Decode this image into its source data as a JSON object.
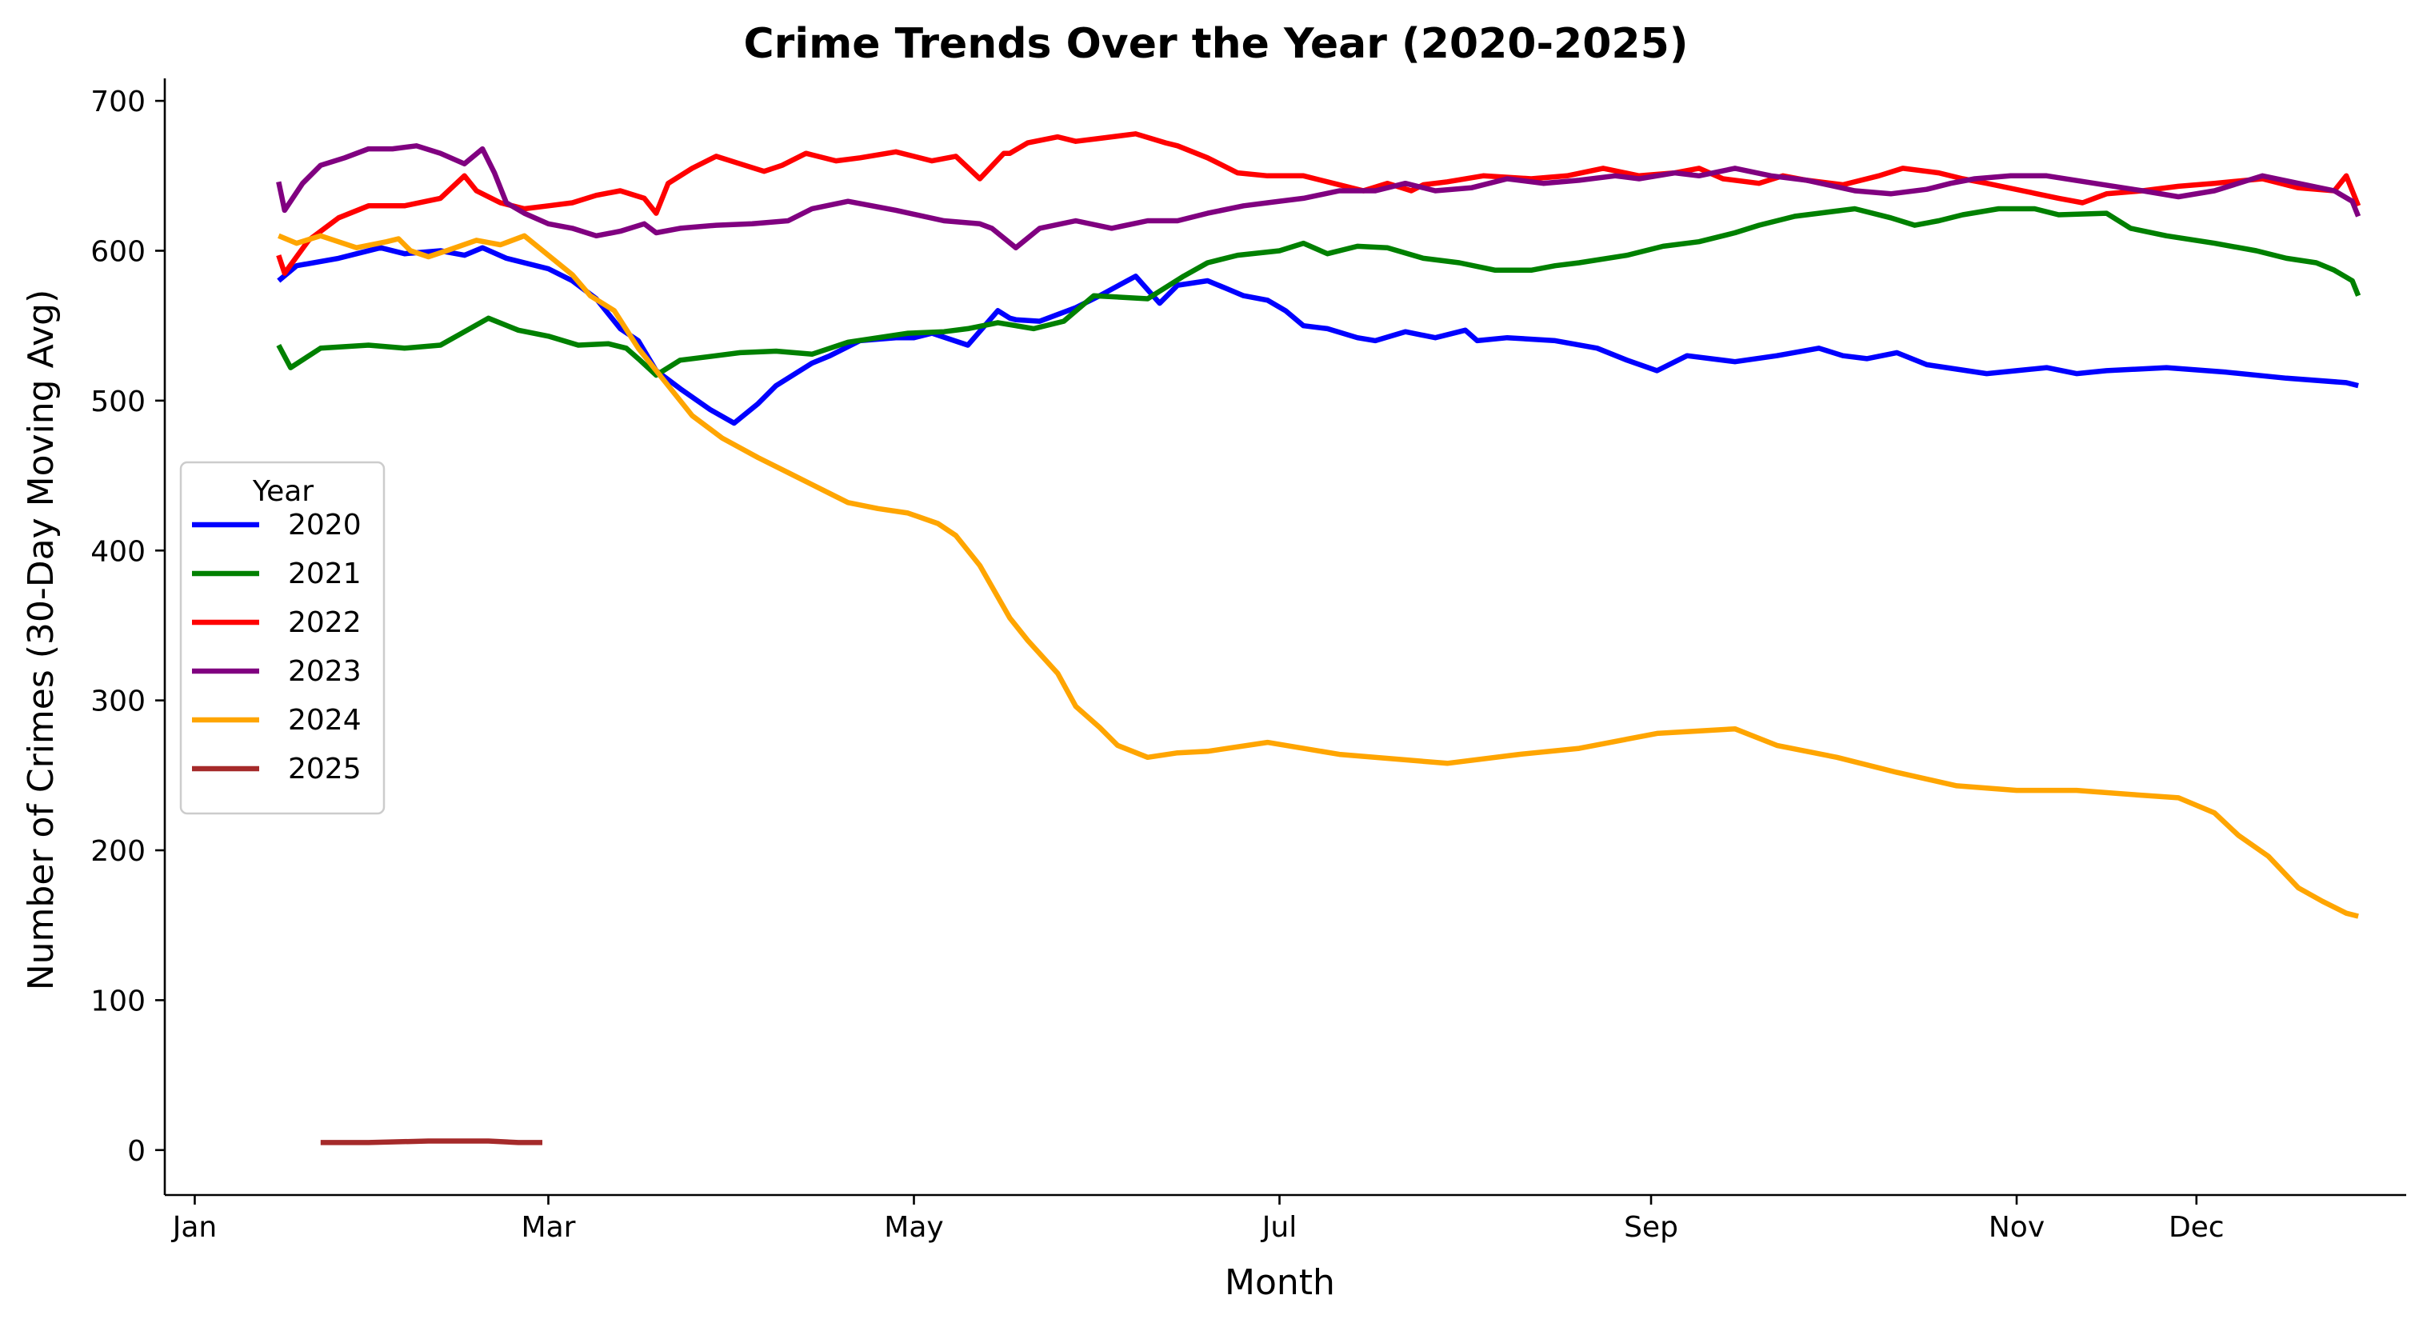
{
  "chart_data": {
    "type": "line",
    "title": "Crime Trends Over the Year (2020-2025)",
    "xlabel": "Month",
    "ylabel": "Number of Crimes (30-Day Moving Avg)",
    "x_unit": "day of year",
    "xlim": [
      -4,
      370
    ],
    "ylim": [
      -30,
      715
    ],
    "x_ticks": [
      {
        "label": "Jan",
        "value": 1
      },
      {
        "label": "Mar",
        "value": 60
      },
      {
        "label": "May",
        "value": 121
      },
      {
        "label": "Jul",
        "value": 182
      },
      {
        "label": "Sep",
        "value": 244
      },
      {
        "label": "Nov",
        "value": 305
      },
      {
        "label": "Dec",
        "value": 335
      }
    ],
    "y_ticks": [
      0,
      100,
      200,
      300,
      400,
      500,
      600,
      700
    ],
    "legend": {
      "title": "Year",
      "position": "center-left"
    },
    "series": [
      {
        "name": "2020",
        "color": "#0000ff",
        "x": [
          15,
          18,
          25,
          32,
          36,
          42,
          46,
          49,
          53,
          60,
          64,
          68,
          72,
          75,
          78,
          82,
          87,
          91,
          95,
          98,
          104,
          107,
          112,
          118,
          121,
          124,
          130,
          135,
          137,
          138,
          142,
          148,
          152,
          158,
          162,
          165,
          170,
          173,
          176,
          180,
          183,
          186,
          190,
          195,
          198,
          203,
          208,
          213,
          215,
          220,
          228,
          235,
          240,
          245,
          250,
          258,
          265,
          272,
          276,
          280,
          285,
          290,
          300,
          305,
          310,
          315,
          320,
          330,
          340,
          350,
          360,
          362
        ],
        "y": [
          580,
          590,
          595,
          602,
          598,
          600,
          597,
          602,
          595,
          588,
          580,
          568,
          548,
          540,
          520,
          508,
          494,
          485,
          498,
          510,
          525,
          530,
          540,
          542,
          542,
          545,
          537,
          560,
          555,
          554,
          553,
          562,
          570,
          583,
          565,
          577,
          580,
          575,
          570,
          567,
          560,
          550,
          548,
          542,
          540,
          546,
          542,
          547,
          540,
          542,
          540,
          535,
          527,
          520,
          530,
          526,
          530,
          535,
          530,
          528,
          532,
          524,
          518,
          520,
          522,
          518,
          520,
          522,
          519,
          515,
          512,
          510
        ]
      },
      {
        "name": "2021",
        "color": "#008000",
        "x": [
          15,
          17,
          22,
          30,
          36,
          42,
          46,
          50,
          55,
          60,
          65,
          70,
          73,
          75,
          78,
          82,
          88,
          92,
          98,
          104,
          110,
          120,
          126,
          130,
          135,
          141,
          146,
          151,
          160,
          166,
          170,
          175,
          182,
          186,
          190,
          195,
          200,
          206,
          212,
          218,
          224,
          228,
          232,
          240,
          246,
          252,
          258,
          262,
          268,
          272,
          278,
          284,
          288,
          292,
          296,
          302,
          308,
          312,
          320,
          324,
          330,
          338,
          345,
          350,
          355,
          358,
          361,
          362
        ],
        "y": [
          537,
          522,
          535,
          537,
          535,
          537,
          546,
          555,
          547,
          543,
          537,
          538,
          535,
          528,
          517,
          527,
          530,
          532,
          533,
          531,
          539,
          545,
          546,
          548,
          552,
          548,
          553,
          570,
          568,
          583,
          592,
          597,
          600,
          605,
          598,
          603,
          602,
          595,
          592,
          587,
          587,
          590,
          592,
          597,
          603,
          606,
          612,
          617,
          623,
          625,
          628,
          622,
          617,
          620,
          624,
          628,
          628,
          624,
          625,
          615,
          610,
          605,
          600,
          595,
          592,
          587,
          580,
          570
        ]
      },
      {
        "name": "2022",
        "color": "#ff0000",
        "x": [
          15,
          16,
          20,
          25,
          30,
          36,
          42,
          46,
          48,
          52,
          56,
          60,
          64,
          68,
          72,
          76,
          78,
          80,
          84,
          88,
          92,
          96,
          99,
          103,
          108,
          112,
          118,
          124,
          128,
          132,
          136,
          137,
          140,
          145,
          148,
          152,
          158,
          163,
          165,
          170,
          175,
          180,
          186,
          191,
          196,
          200,
          204,
          206,
          210,
          216,
          224,
          230,
          236,
          242,
          248,
          252,
          256,
          262,
          266,
          270,
          276,
          282,
          286,
          292,
          296,
          300,
          306,
          312,
          316,
          320,
          326,
          332,
          338,
          346,
          352,
          358,
          360,
          362
        ],
        "y": [
          597,
          585,
          607,
          622,
          630,
          630,
          635,
          650,
          640,
          632,
          628,
          630,
          632,
          637,
          640,
          635,
          625,
          645,
          655,
          663,
          658,
          653,
          657,
          665,
          660,
          662,
          666,
          660,
          663,
          648,
          665,
          665,
          672,
          676,
          673,
          675,
          678,
          672,
          670,
          662,
          652,
          650,
          650,
          645,
          640,
          645,
          640,
          644,
          646,
          650,
          648,
          650,
          655,
          650,
          652,
          655,
          648,
          645,
          650,
          647,
          644,
          650,
          655,
          652,
          648,
          645,
          640,
          635,
          632,
          638,
          640,
          643,
          645,
          648,
          642,
          640,
          650,
          630
        ]
      },
      {
        "name": "2023",
        "color": "#800080",
        "x": [
          15,
          16,
          19,
          22,
          26,
          30,
          34,
          38,
          42,
          46,
          49,
          51,
          53,
          56,
          60,
          64,
          68,
          72,
          76,
          78,
          82,
          88,
          94,
          100,
          104,
          110,
          118,
          126,
          132,
          134,
          138,
          142,
          148,
          154,
          160,
          165,
          170,
          176,
          180,
          186,
          192,
          198,
          203,
          208,
          214,
          220,
          226,
          232,
          238,
          242,
          248,
          252,
          258,
          264,
          270,
          278,
          284,
          290,
          294,
          298,
          304,
          310,
          318,
          326,
          332,
          338,
          346,
          352,
          358,
          361,
          362
        ],
        "y": [
          646,
          627,
          645,
          657,
          662,
          668,
          668,
          670,
          665,
          658,
          668,
          652,
          632,
          625,
          618,
          615,
          610,
          613,
          618,
          612,
          615,
          617,
          618,
          620,
          628,
          633,
          627,
          620,
          618,
          615,
          602,
          615,
          620,
          615,
          620,
          620,
          625,
          630,
          632,
          635,
          640,
          640,
          645,
          640,
          642,
          648,
          645,
          647,
          650,
          648,
          652,
          650,
          655,
          650,
          647,
          640,
          638,
          641,
          645,
          648,
          650,
          650,
          645,
          640,
          636,
          640,
          650,
          645,
          640,
          633,
          623
        ]
      },
      {
        "name": "2024",
        "color": "#ffa500",
        "x": [
          15,
          18,
          22,
          28,
          33,
          35,
          37,
          40,
          43,
          48,
          52,
          56,
          60,
          64,
          67,
          71,
          75,
          80,
          84,
          89,
          95,
          100,
          106,
          110,
          115,
          120,
          125,
          128,
          132,
          137,
          140,
          145,
          148,
          152,
          155,
          160,
          165,
          170,
          180,
          192,
          210,
          222,
          232,
          245,
          258,
          265,
          275,
          285,
          295,
          305,
          315,
          325,
          332,
          338,
          342,
          347,
          352,
          356,
          360,
          362
        ],
        "y": [
          610,
          605,
          610,
          602,
          606,
          608,
          600,
          596,
          600,
          607,
          604,
          610,
          597,
          584,
          570,
          560,
          535,
          510,
          490,
          475,
          462,
          452,
          440,
          432,
          428,
          425,
          418,
          410,
          390,
          355,
          340,
          318,
          296,
          282,
          270,
          262,
          265,
          266,
          272,
          264,
          258,
          264,
          268,
          278,
          281,
          270,
          262,
          252,
          243,
          240,
          240,
          237,
          235,
          225,
          210,
          196,
          175,
          166,
          158,
          156
        ]
      },
      {
        "name": "2025",
        "color": "#a52a2a",
        "x": [
          22,
          30,
          40,
          50,
          55,
          59
        ],
        "y": [
          5,
          5,
          6,
          6,
          5,
          5
        ]
      }
    ]
  }
}
